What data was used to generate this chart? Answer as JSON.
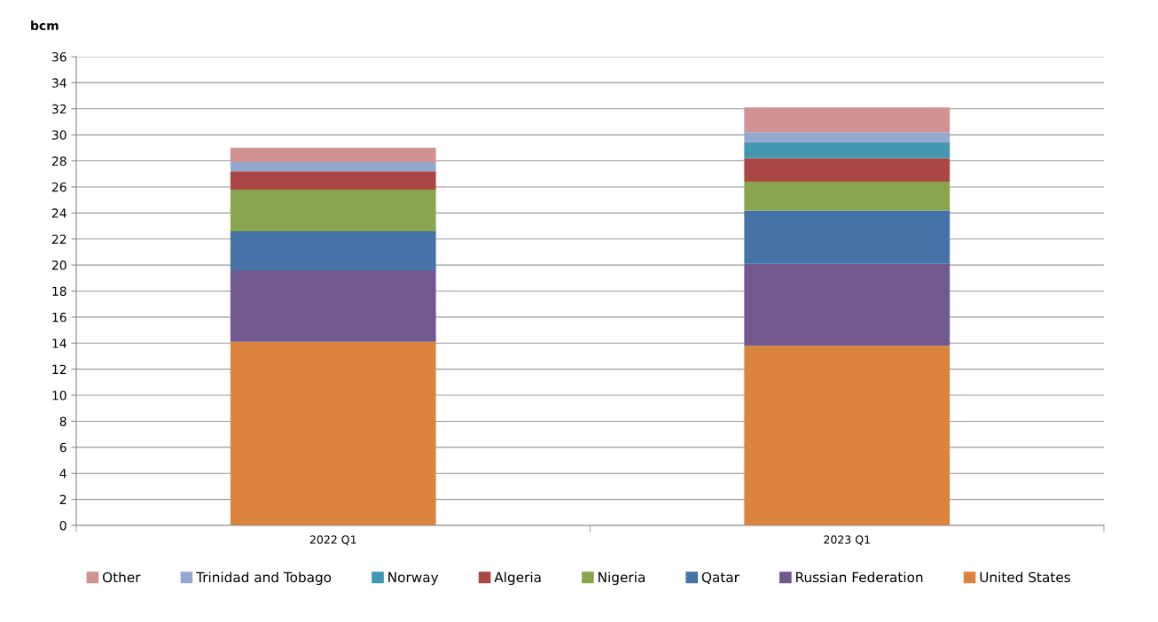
{
  "chart_data": {
    "type": "bar",
    "stacked": true,
    "ylabel": "bcm",
    "categories": [
      "2022 Q1",
      "2023 Q1"
    ],
    "series": [
      {
        "name": "United States",
        "color": "#db843d",
        "values": [
          14.1,
          13.8
        ]
      },
      {
        "name": "Russian Federation",
        "color": "#71588f",
        "values": [
          5.5,
          6.3
        ]
      },
      {
        "name": "Qatar",
        "color": "#4572a7",
        "values": [
          3.0,
          4.1
        ]
      },
      {
        "name": "Nigeria",
        "color": "#89a54e",
        "values": [
          3.2,
          2.2
        ]
      },
      {
        "name": "Algeria",
        "color": "#aa4643",
        "values": [
          1.4,
          1.8
        ]
      },
      {
        "name": "Norway",
        "color": "#4198af",
        "values": [
          0,
          1.2
        ]
      },
      {
        "name": "Trinidad and Tobago",
        "color": "#93a9cf",
        "values": [
          0.7,
          0.8
        ]
      },
      {
        "name": "Other",
        "color": "#d19392",
        "values": [
          1.1,
          1.9
        ]
      }
    ],
    "ylim": [
      0,
      36
    ],
    "yticks": [
      0,
      2,
      4,
      6,
      8,
      10,
      12,
      14,
      16,
      18,
      20,
      22,
      24,
      26,
      28,
      30,
      32,
      34,
      36
    ],
    "grid": "y",
    "legend": "bottom"
  }
}
